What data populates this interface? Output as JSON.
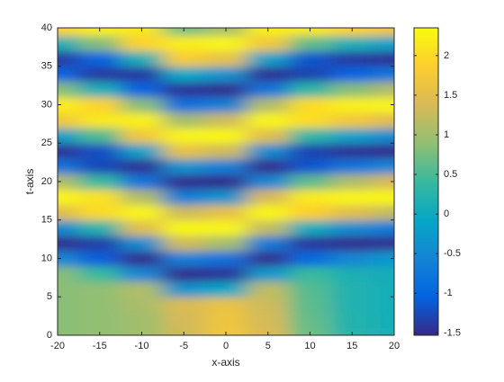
{
  "chart_data": {
    "type": "heatmap",
    "xlabel": "x-axis",
    "ylabel": "t-axis",
    "x": [
      -20,
      -15,
      -10,
      -5,
      0,
      5,
      10,
      15,
      20
    ],
    "y": [
      0,
      2,
      4,
      6,
      8,
      10,
      12,
      14,
      16,
      18,
      20,
      22,
      24,
      26,
      28,
      30,
      32,
      34,
      36,
      38,
      40
    ],
    "z": [
      [
        0.85,
        0.85,
        0.85,
        0.85,
        0.85,
        -0.55,
        -1.5,
        -0.46,
        1.48,
        2.29,
        1.12,
        -0.8,
        -1.46,
        -0.17,
        1.71,
        2.23,
        0.84,
        -1.02,
        -1.39,
        0.12,
        1.92
      ],
      [
        0.9,
        0.9,
        0.9,
        0.9,
        0.4,
        -1.09,
        -1.35,
        0.23,
        1.98,
        2.08,
        0.42,
        -1.26,
        -1.21,
        0.53,
        2.13,
        1.92,
        0.12,
        -1.39,
        -1.02,
        0.82,
        2.23
      ],
      [
        1.0,
        1.0,
        1.05,
        1.1,
        -0.55,
        -1.5,
        -0.46,
        1.48,
        2.29,
        1.12,
        -0.8,
        -1.46,
        -0.17,
        1.71,
        2.23,
        0.84,
        -1.02,
        -1.39,
        0.12,
        1.92,
        2.13
      ],
      [
        1.3,
        1.35,
        1.4,
        -0.36,
        -1.49,
        -0.64,
        1.31,
        2.3,
        1.31,
        -0.64,
        -1.49,
        -0.36,
        1.56,
        2.28,
        1.03,
        -0.88,
        -1.44,
        -0.08,
        1.79,
        2.2,
        0.73
      ],
      [
        1.7,
        1.65,
        1.6,
        -0.08,
        -1.44,
        -0.88,
        1.03,
        2.28,
        1.56,
        -0.36,
        -1.49,
        -0.64,
        1.31,
        2.3,
        1.31,
        -0.64,
        -1.49,
        -0.36,
        1.56,
        2.28,
        1.03
      ],
      [
        1.4,
        1.35,
        1.3,
        1.2,
        -0.27,
        -1.48,
        -0.72,
        1.22,
        2.3,
        1.39,
        -0.55,
        -1.5,
        -0.46,
        1.48,
        2.29,
        1.12,
        -0.8,
        -1.46,
        -0.17,
        1.71,
        2.23
      ],
      [
        0.7,
        0.65,
        0.6,
        0.55,
        0.4,
        -0.95,
        -1.42,
        0.02,
        1.86,
        2.17,
        0.63,
        -1.15,
        -1.31,
        0.32,
        2.03,
        2.03,
        0.32,
        -1.31,
        -1.15,
        0.63,
        2.17
      ],
      [
        0.25,
        0.22,
        0.2,
        0.2,
        0.15,
        -0.55,
        -1.5,
        -0.46,
        1.48,
        2.29,
        1.12,
        -0.8,
        -1.46,
        -0.17,
        1.71,
        2.23,
        0.84,
        -1.02,
        -1.39,
        0.12,
        1.92
      ],
      [
        0.12,
        0.1,
        0.1,
        0.1,
        0.05,
        -0.27,
        -1.48,
        -0.72,
        1.22,
        2.3,
        1.39,
        -0.55,
        -1.5,
        -0.46,
        1.48,
        2.29,
        1.12,
        -0.8,
        -1.46,
        -0.17,
        1.71
      ]
    ],
    "xlim": [
      -20,
      20
    ],
    "xticks": [
      -20,
      -15,
      -10,
      -5,
      0,
      5,
      10,
      15,
      20
    ],
    "ylim": [
      0,
      40
    ],
    "yticks": [
      0,
      5,
      10,
      15,
      20,
      25,
      30,
      35,
      40
    ],
    "colormap": "parula",
    "clim": [
      -1.53,
      2.35
    ],
    "cticks": [
      -1.5,
      -1,
      -0.5,
      0,
      0.5,
      1,
      1.5,
      2
    ]
  }
}
